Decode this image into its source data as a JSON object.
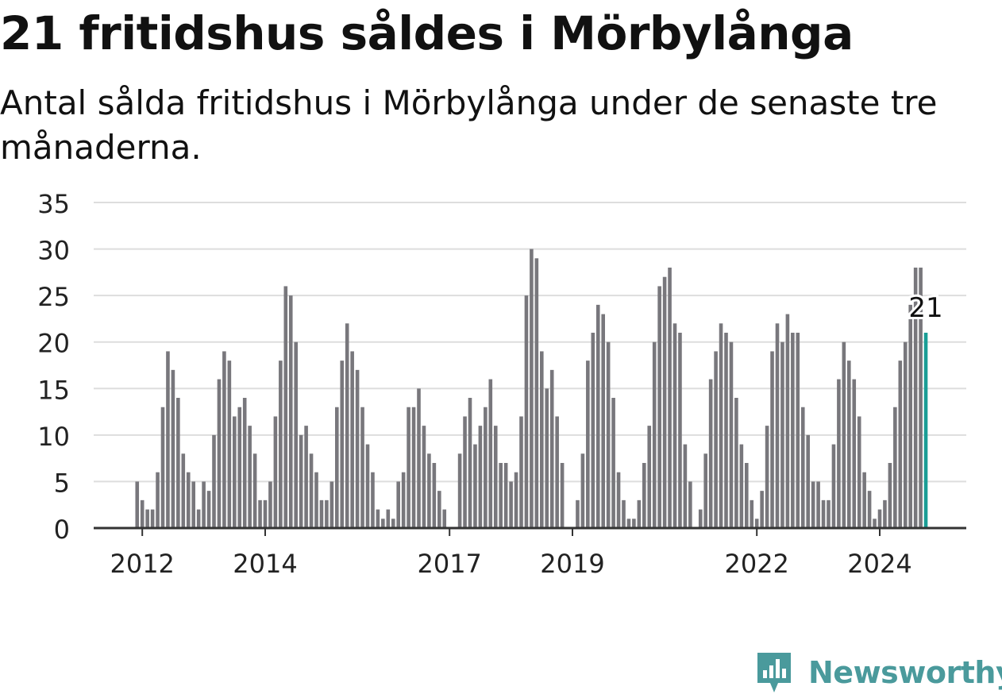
{
  "title": "21 fritidshus såldes i Mörbylånga",
  "subtitle": "Antal sålda fritidshus i Mörbylånga under de senaste tre månaderna.",
  "brand": {
    "name": "Newsworthy",
    "icon": "newsworthy-logo-icon",
    "color": "#4a9a9c"
  },
  "colors": {
    "bar": "#78777c",
    "highlight": "#1a9e96",
    "grid": "#dddddd",
    "axis": "#333333"
  },
  "chart_data": {
    "type": "bar",
    "title": "",
    "xlabel": "",
    "ylabel": "",
    "ylim": [
      0,
      35
    ],
    "yticks": [
      0,
      5,
      10,
      15,
      20,
      25,
      30,
      35
    ],
    "xtick_labels": [
      "2012",
      "2014",
      "2017",
      "2019",
      "2022",
      "2024"
    ],
    "grid": true,
    "start_period": "2011-11",
    "frequency": "monthly",
    "series": [
      {
        "values": [
          0,
          5,
          3,
          2,
          2,
          6,
          13,
          19,
          17,
          14,
          8,
          6,
          5,
          2,
          5,
          4,
          10,
          16,
          19,
          18,
          12,
          13,
          14,
          11,
          8,
          3,
          3,
          5,
          12,
          18,
          26,
          25,
          20,
          10,
          11,
          8,
          6,
          3,
          3,
          5,
          13,
          18,
          22,
          19,
          17,
          13,
          9,
          6,
          2,
          1,
          2,
          1,
          5,
          6,
          13,
          13,
          15,
          11,
          8,
          7,
          4,
          2,
          0,
          0,
          8,
          12,
          14,
          9,
          11,
          13,
          16,
          11,
          7,
          7,
          5,
          6,
          12,
          25,
          30,
          29,
          19,
          15,
          17,
          12,
          7,
          0,
          0,
          3,
          8,
          18,
          21,
          24,
          23,
          20,
          14,
          6,
          3,
          1,
          1,
          3,
          7,
          11,
          20,
          26,
          27,
          28,
          22,
          21,
          9,
          5,
          0,
          2,
          8,
          16,
          19,
          22,
          21,
          20,
          14,
          9,
          7,
          3,
          1,
          4,
          11,
          19,
          22,
          20,
          23,
          21,
          21,
          13,
          10,
          5,
          5,
          3,
          3,
          9,
          16,
          20,
          18,
          16,
          12,
          6,
          4,
          1,
          2,
          3,
          7,
          13,
          18,
          20,
          24,
          28,
          28,
          21
        ]
      }
    ],
    "annotation": {
      "text": "21",
      "value": 21,
      "period": "2024-11"
    }
  }
}
